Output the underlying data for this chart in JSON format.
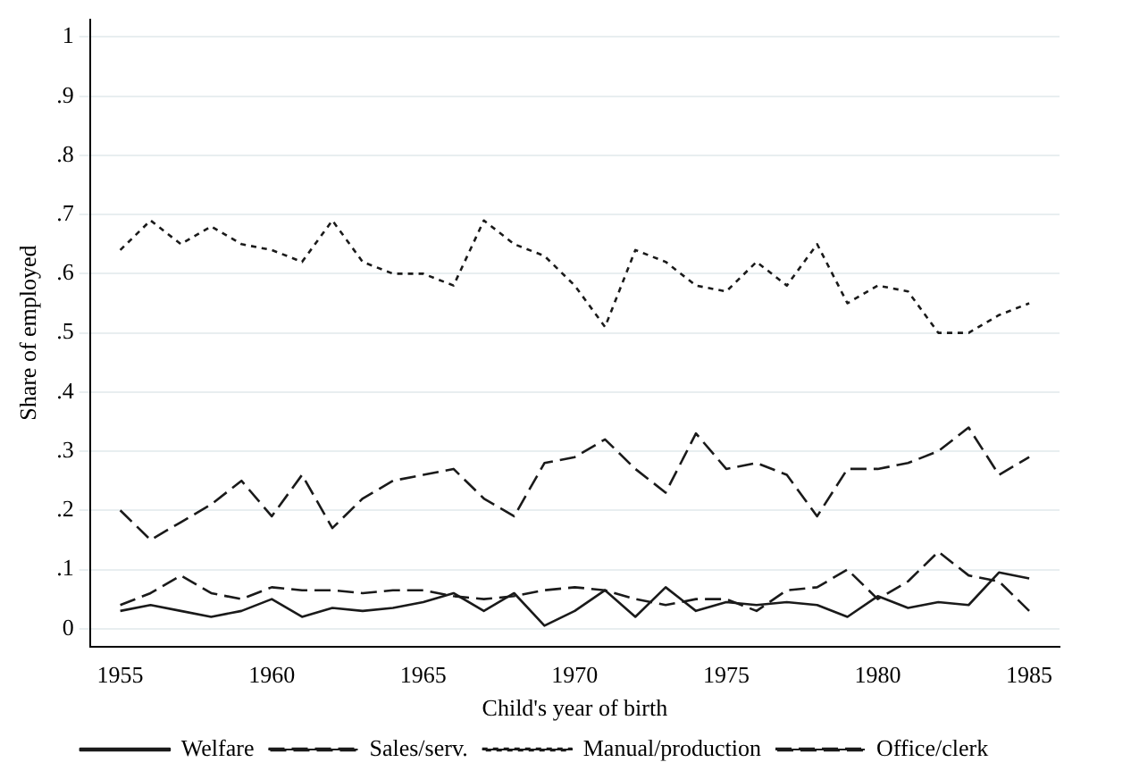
{
  "chart_data": {
    "type": "line",
    "xlabel": "Child's year of birth",
    "ylabel": "Share of employed",
    "x": [
      1955,
      1956,
      1957,
      1958,
      1959,
      1960,
      1961,
      1962,
      1963,
      1964,
      1965,
      1966,
      1967,
      1968,
      1969,
      1970,
      1971,
      1972,
      1973,
      1974,
      1975,
      1976,
      1977,
      1978,
      1979,
      1980,
      1981,
      1982,
      1983,
      1984,
      1985
    ],
    "series": [
      {
        "name": "Welfare",
        "color": "#1a1a1a",
        "line_style": "solid",
        "values": [
          0.03,
          0.04,
          0.03,
          0.02,
          0.03,
          0.05,
          0.02,
          0.035,
          0.03,
          0.035,
          0.045,
          0.06,
          0.03,
          0.06,
          0.005,
          0.03,
          0.065,
          0.02,
          0.07,
          0.03,
          0.045,
          0.04,
          0.045,
          0.04,
          0.02,
          0.055,
          0.035,
          0.045,
          0.04,
          0.095,
          0.085
        ]
      },
      {
        "name": "Sales/serv.",
        "color": "#1a1a1a",
        "line_style": "dashed",
        "values": [
          0.2,
          0.15,
          0.18,
          0.21,
          0.25,
          0.19,
          0.26,
          0.17,
          0.22,
          0.25,
          0.26,
          0.27,
          0.22,
          0.19,
          0.28,
          0.29,
          0.32,
          0.27,
          0.23,
          0.33,
          0.27,
          0.28,
          0.26,
          0.19,
          0.27,
          0.27,
          0.28,
          0.3,
          0.34,
          0.26,
          0.29
        ]
      },
      {
        "name": "Manual/production",
        "color": "#1a1a1a",
        "line_style": "dotted",
        "values": [
          0.64,
          0.69,
          0.65,
          0.68,
          0.65,
          0.64,
          0.62,
          0.69,
          0.62,
          0.6,
          0.6,
          0.58,
          0.69,
          0.65,
          0.63,
          0.58,
          0.51,
          0.64,
          0.62,
          0.58,
          0.57,
          0.62,
          0.58,
          0.65,
          0.55,
          0.58,
          0.57,
          0.5,
          0.5,
          0.53,
          0.55
        ]
      },
      {
        "name": "Office/clerk",
        "color": "#1a1a1a",
        "line_style": "dashed",
        "values": [
          0.04,
          0.06,
          0.09,
          0.06,
          0.05,
          0.07,
          0.065,
          0.065,
          0.06,
          0.065,
          0.065,
          0.055,
          0.05,
          0.055,
          0.065,
          0.07,
          0.065,
          0.05,
          0.04,
          0.05,
          0.05,
          0.03,
          0.065,
          0.07,
          0.1,
          0.05,
          0.08,
          0.13,
          0.09,
          0.08,
          0.03
        ]
      }
    ],
    "xlim": [
      1954,
      1986
    ],
    "xticks": [
      1955,
      1960,
      1965,
      1970,
      1975,
      1980,
      1985
    ],
    "ylim": [
      -0.03,
      1.03
    ],
    "yticks": [
      0,
      {
        "value": 0.1,
        "label": ".1"
      },
      {
        "value": 0.2,
        "label": ".2"
      },
      {
        "value": 0.3,
        "label": ".3"
      },
      {
        "value": 0.4,
        "label": ".4"
      },
      {
        "value": 0.5,
        "label": ".5"
      },
      {
        "value": 0.6,
        "label": ".6"
      },
      {
        "value": 0.7,
        "label": ".7"
      },
      {
        "value": 0.8,
        "label": ".8"
      },
      {
        "value": 0.9,
        "label": ".9"
      },
      1
    ],
    "grid": "y",
    "legend": "bottom",
    "marker": "none"
  }
}
